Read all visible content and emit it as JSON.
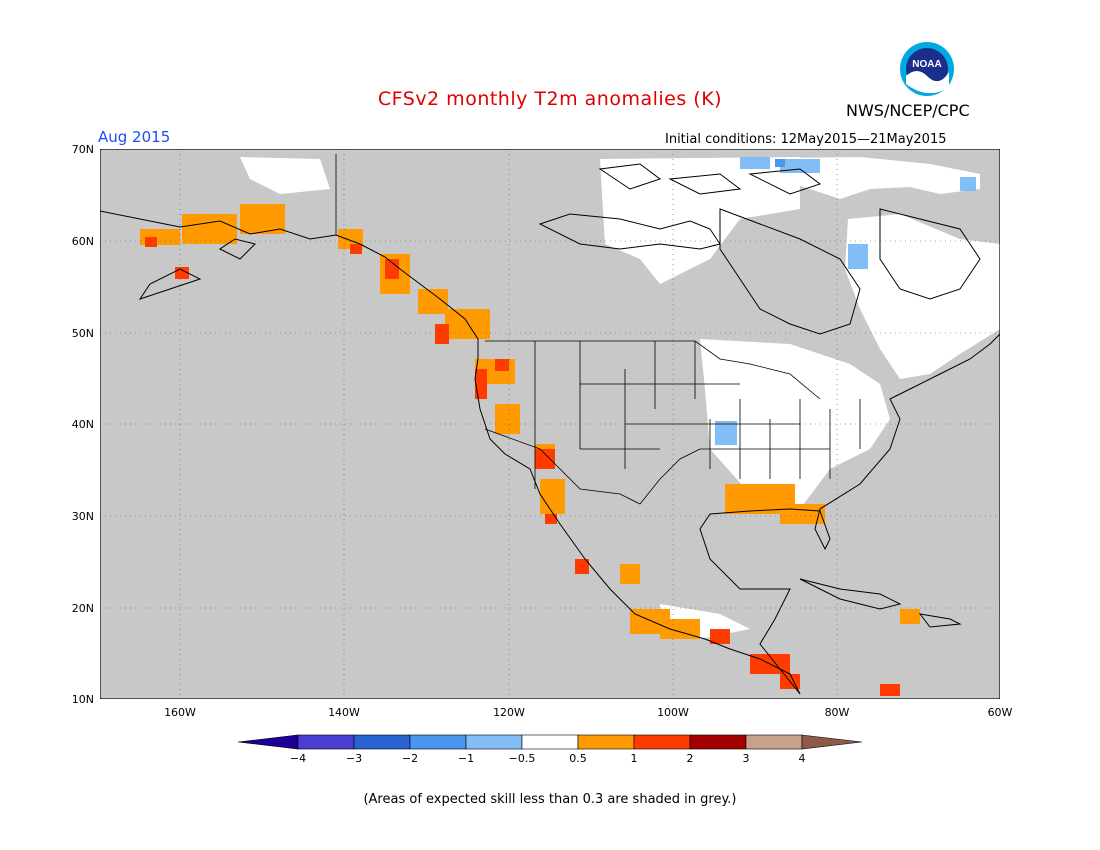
{
  "title": "CFSv2 monthly T2m anomalies (K)",
  "organization": "NWS/NCEP/CPC",
  "valid_month": "Aug 2015",
  "initial_conditions": "Initial conditions: 12May2015—21May2015",
  "footnote": "(Areas of expected skill less than 0.3 are shaded in grey.)",
  "logo_text": "NOAA",
  "lat_labels": [
    "70N",
    "60N",
    "50N",
    "40N",
    "30N",
    "20N",
    "10N"
  ],
  "lon_labels": [
    "160W",
    "140W",
    "120W",
    "100W",
    "80W",
    "60W"
  ],
  "colorbar": {
    "labels": [
      "−4",
      "−3",
      "−2",
      "−1",
      "−0.5",
      "0.5",
      "1",
      "2",
      "3",
      "4"
    ],
    "colors": [
      "#1e0096",
      "#4b3cd2",
      "#2864d2",
      "#4b96f0",
      "#82bef5",
      "#ffffff",
      "#ff9b00",
      "#ff3c00",
      "#a50000",
      "#c8a08c",
      "#8c5a46"
    ]
  },
  "colors": {
    "skill_mask": "#c8c8c8",
    "ocean_mask": "#c8c8c8",
    "title": "#e00000",
    "month": "#1a4cff"
  }
}
